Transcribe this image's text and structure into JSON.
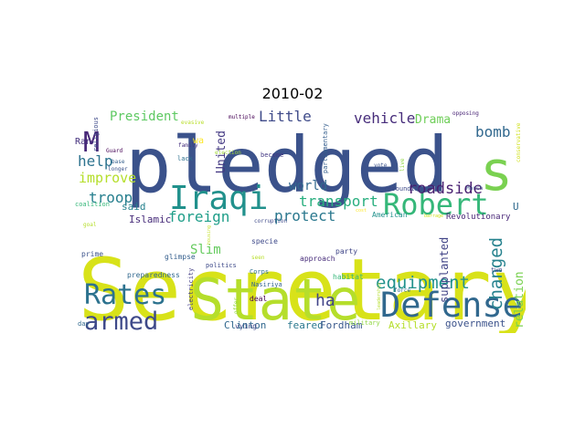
{
  "title": "2010-02",
  "words": [
    {
      "text": "Secretary",
      "color": "#d8e219"
    },
    {
      "text": "pledged",
      "color": "#3b528b"
    },
    {
      "text": "State",
      "color": "#b5de2b"
    },
    {
      "text": "s",
      "color": "#7ad151"
    },
    {
      "text": "Defense",
      "color": "#31688e"
    },
    {
      "text": "Robert",
      "color": "#35b779"
    },
    {
      "text": "Iraqi",
      "color": "#21918c"
    },
    {
      "text": "Rates",
      "color": "#2c728e"
    },
    {
      "text": "armed",
      "color": "#3e4989"
    },
    {
      "text": "M",
      "color": "#482878"
    },
    {
      "text": "equipment",
      "color": "#21918c"
    },
    {
      "text": "changed",
      "color": "#26828e"
    },
    {
      "text": "transport",
      "color": "#29af7f"
    },
    {
      "text": "foreign",
      "color": "#1f9e89"
    },
    {
      "text": "protect",
      "color": "#2a788e"
    },
    {
      "text": "roadside",
      "color": "#481f70"
    },
    {
      "text": "vehicle",
      "color": "#472d7b"
    },
    {
      "text": "Little",
      "color": "#3e4a89"
    },
    {
      "text": "bomb",
      "color": "#31688e"
    },
    {
      "text": "President",
      "color": "#5ec962"
    },
    {
      "text": "troop",
      "color": "#277f8e"
    },
    {
      "text": "help",
      "color": "#2c728e"
    },
    {
      "text": "improve",
      "color": "#b5de2b"
    },
    {
      "text": "world",
      "color": "#31688e"
    },
    {
      "text": "ha",
      "color": "#414487"
    },
    {
      "text": "Slim",
      "color": "#65cb5e"
    },
    {
      "text": "supplanted",
      "color": "#414487"
    },
    {
      "text": "relation",
      "color": "#7ad151"
    },
    {
      "text": "Drama",
      "color": "#6ece58"
    },
    {
      "text": "United",
      "color": "#443983"
    },
    {
      "text": "Islamic",
      "color": "#472c7a"
    },
    {
      "text": "Clinton",
      "color": "#31688e"
    },
    {
      "text": "Axillary",
      "color": "#b5de2b"
    },
    {
      "text": "feared",
      "color": "#2a788e"
    },
    {
      "text": "Fordham",
      "color": "#38588c"
    },
    {
      "text": "government",
      "color": "#3b528b"
    },
    {
      "text": "said",
      "color": "#26828e"
    },
    {
      "text": "U",
      "color": "#306a8e"
    },
    {
      "text": "Ran",
      "color": "#46327e"
    },
    {
      "text": "wa",
      "color": "#fde725"
    },
    {
      "text": "religious",
      "color": "#3e4a89"
    },
    {
      "text": "Guard",
      "color": "#440154"
    },
    {
      "text": "base",
      "color": "#355f8d"
    },
    {
      "text": "lack",
      "color": "#2d708e"
    },
    {
      "text": "family",
      "color": "#46307e"
    },
    {
      "text": "evasive",
      "color": "#b8de29"
    },
    {
      "text": "multiple",
      "color": "#440154"
    },
    {
      "text": "parliamentary",
      "color": "#355e8d"
    },
    {
      "text": "become",
      "color": "#443983"
    },
    {
      "text": "vote",
      "color": "#3b528b"
    },
    {
      "text": "resounding",
      "color": "#3e4989"
    },
    {
      "text": "March",
      "color": "#3b528b"
    },
    {
      "text": "opposing",
      "color": "#482475"
    },
    {
      "text": "conservative",
      "color": "#d0e11c"
    },
    {
      "text": "coalition",
      "color": "#35b779"
    },
    {
      "text": "American",
      "color": "#21918c"
    },
    {
      "text": "Revolutionary",
      "color": "#482677"
    },
    {
      "text": "prime",
      "color": "#3b528b"
    },
    {
      "text": "glimpse",
      "color": "#355f8d"
    },
    {
      "text": "specie",
      "color": "#3e4989"
    },
    {
      "text": "party",
      "color": "#404688"
    },
    {
      "text": "approach",
      "color": "#472c7a"
    },
    {
      "text": "politics",
      "color": "#3e4a89"
    },
    {
      "text": "seen",
      "color": "#b8de29"
    },
    {
      "text": "Corps",
      "color": "#2d708e"
    },
    {
      "text": "habitat",
      "color": "#35b779"
    },
    {
      "text": "preparedness",
      "color": "#31688e"
    },
    {
      "text": "Nasiriya",
      "color": "#33638d"
    },
    {
      "text": "deal",
      "color": "#440154"
    },
    {
      "text": "electricity",
      "color": "#433e85"
    },
    {
      "text": "vying",
      "color": "#3e4989"
    },
    {
      "text": "military",
      "color": "#90d743"
    },
    {
      "text": "day",
      "color": "#31688e"
    },
    {
      "text": "two",
      "color": "#404688"
    },
    {
      "text": "longer",
      "color": "#3b528b"
    },
    {
      "text": "election",
      "color": "#a2da37"
    },
    {
      "text": "corruption",
      "color": "#3e4989"
    },
    {
      "text": "goal",
      "color": "#b5de2b"
    },
    {
      "text": "housing",
      "color": "#c2df23"
    },
    {
      "text": "live",
      "color": "#90d743"
    },
    {
      "text": "cost",
      "color": "#fde725"
    },
    {
      "text": "force",
      "color": "#31688e"
    },
    {
      "text": "offer",
      "color": "#95d840"
    },
    {
      "text": "leadership",
      "color": "#b5de2b"
    },
    {
      "text": "barrage",
      "color": "#d0e11c"
    }
  ]
}
